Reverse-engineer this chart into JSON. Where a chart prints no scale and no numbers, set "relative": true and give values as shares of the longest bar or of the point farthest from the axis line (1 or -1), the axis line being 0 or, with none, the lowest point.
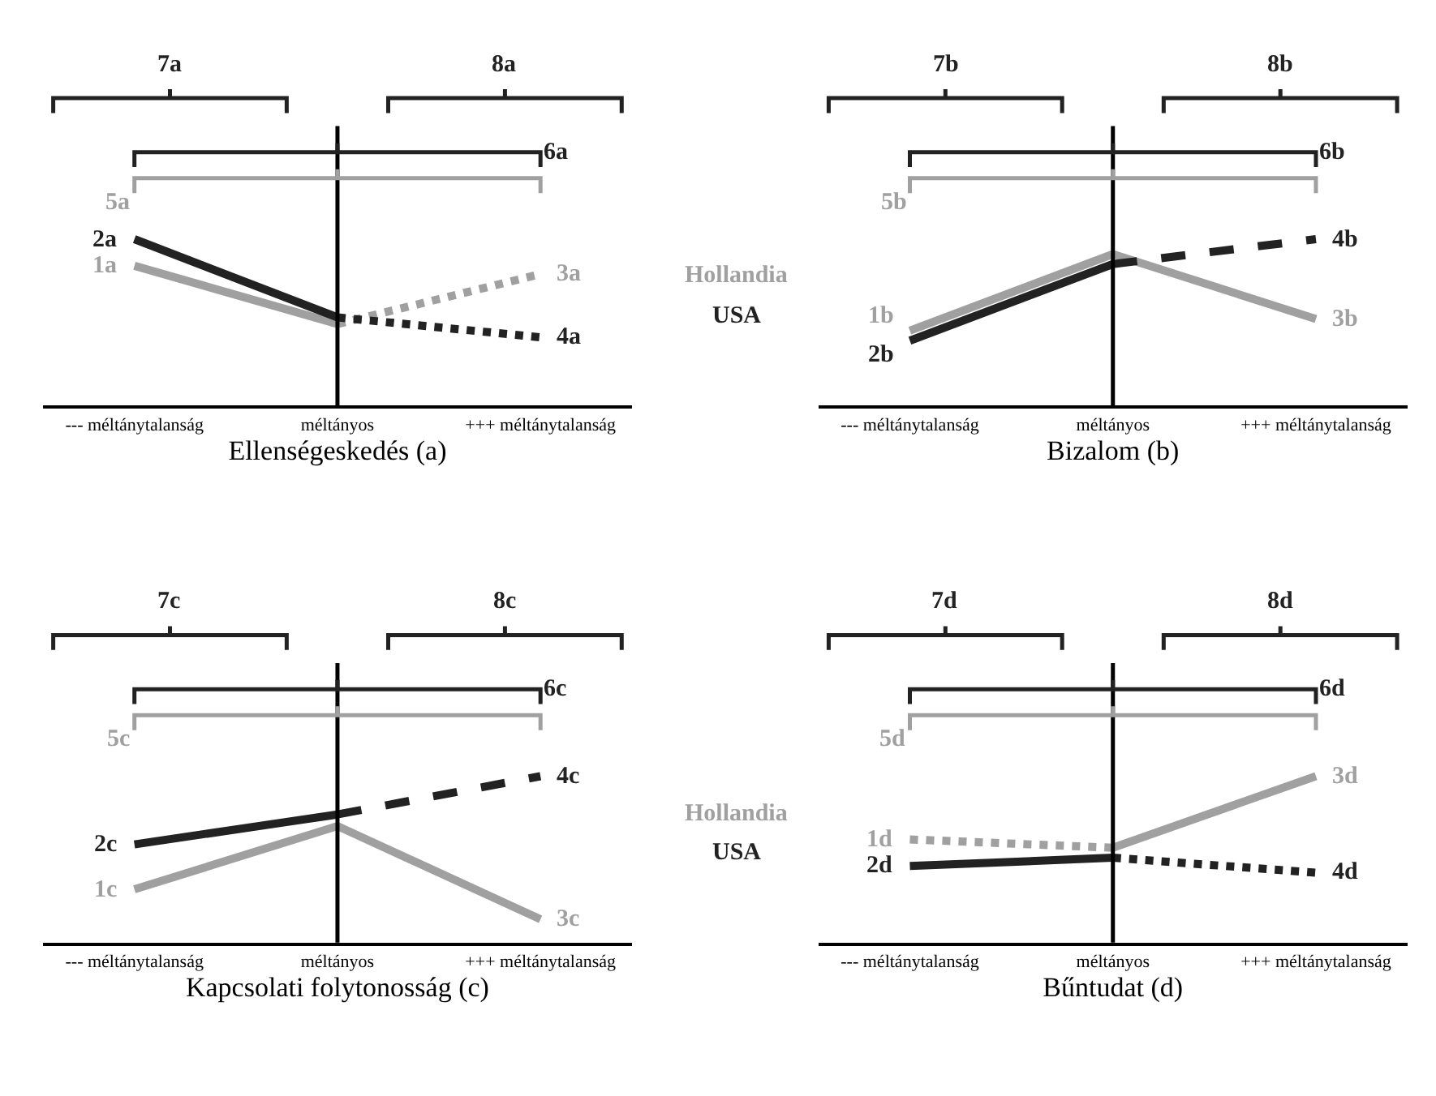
{
  "chart_data": [
    {
      "type": "line",
      "relative": true,
      "xlabel": "Ellenségeskedés (a)",
      "categories": [
        "--- méltánytalanság",
        "méltányos",
        "+++ méltánytalanság"
      ],
      "annotations": [
        "5a",
        "6a",
        "7a",
        "8a"
      ],
      "series": [
        {
          "name": "1a",
          "color": "#a0a0a0",
          "line_style": "solid",
          "values": [
            0.84,
            0.49,
            null
          ]
        },
        {
          "name": "2a",
          "color": "#222222",
          "line_style": "solid",
          "values": [
            1.0,
            0.53,
            null
          ]
        },
        {
          "name": "3a",
          "color": "#a0a0a0",
          "line_style": "dotted",
          "values": [
            null,
            0.49,
            0.79
          ]
        },
        {
          "name": "4a",
          "color": "#222222",
          "line_style": "dotted",
          "values": [
            null,
            0.53,
            0.41
          ]
        }
      ]
    },
    {
      "type": "line",
      "relative": true,
      "xlabel": "Bizalom (b)",
      "categories": [
        "--- méltánytalanság",
        "méltányos",
        "+++ méltánytalanság"
      ],
      "annotations": [
        "5b",
        "6b",
        "7b",
        "8b",
        "Hollandia",
        "USA"
      ],
      "series": [
        {
          "name": "1b",
          "color": "#a0a0a0",
          "line_style": "solid",
          "values": [
            0.45,
            0.91,
            null
          ]
        },
        {
          "name": "2b",
          "color": "#222222",
          "line_style": "solid",
          "values": [
            0.39,
            0.85,
            null
          ]
        },
        {
          "name": "3b",
          "color": "#a0a0a0",
          "line_style": "solid",
          "values": [
            null,
            0.91,
            0.52
          ]
        },
        {
          "name": "4b",
          "color": "#222222",
          "line_style": "dashed",
          "values": [
            null,
            0.85,
            1.0
          ]
        }
      ]
    },
    {
      "type": "line",
      "relative": true,
      "xlabel": "Kapcsolati folytonosság (c)",
      "categories": [
        "--- méltánytalanság",
        "méltányos",
        "+++ méltánytalanság"
      ],
      "annotations": [
        "5c",
        "6c",
        "7c",
        "8c"
      ],
      "series": [
        {
          "name": "1c",
          "color": "#a0a0a0",
          "line_style": "solid",
          "values": [
            0.32,
            0.7,
            null
          ]
        },
        {
          "name": "2c",
          "color": "#222222",
          "line_style": "solid",
          "values": [
            0.59,
            0.77,
            null
          ]
        },
        {
          "name": "3c",
          "color": "#a0a0a0",
          "line_style": "solid",
          "values": [
            null,
            0.7,
            0.14
          ]
        },
        {
          "name": "4c",
          "color": "#222222",
          "line_style": "dashed",
          "values": [
            null,
            0.77,
            1.0
          ]
        }
      ]
    },
    {
      "type": "line",
      "relative": true,
      "xlabel": "Bűntudat (d)",
      "categories": [
        "--- méltánytalanság",
        "méltányos",
        "+++ méltánytalanság"
      ],
      "annotations": [
        "5d",
        "6d",
        "7d",
        "8d",
        "Hollandia",
        "USA"
      ],
      "series": [
        {
          "name": "1d",
          "color": "#a0a0a0",
          "line_style": "dotted",
          "values": [
            0.62,
            0.57,
            null
          ]
        },
        {
          "name": "2d",
          "color": "#222222",
          "line_style": "solid",
          "values": [
            0.46,
            0.51,
            null
          ]
        },
        {
          "name": "3d",
          "color": "#a0a0a0",
          "line_style": "solid",
          "values": [
            null,
            0.57,
            1.0
          ]
        },
        {
          "name": "4d",
          "color": "#222222",
          "line_style": "dotted",
          "values": [
            null,
            0.51,
            0.42
          ]
        }
      ]
    }
  ]
}
